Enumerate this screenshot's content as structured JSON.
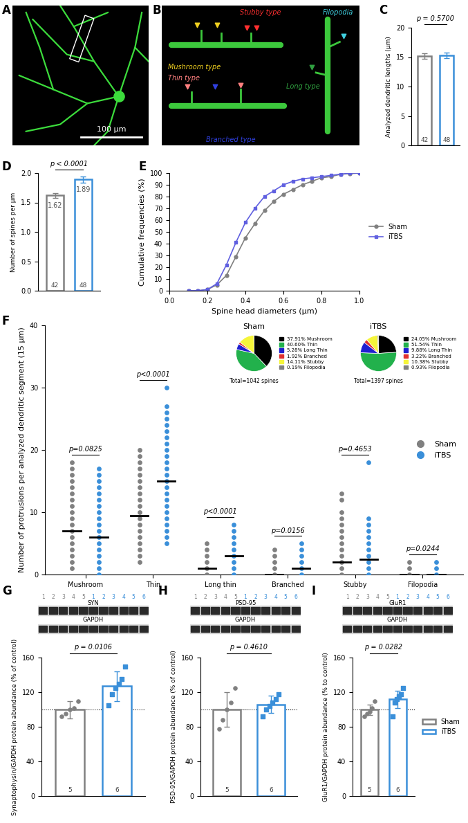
{
  "chart_data": [
    {
      "panel": "A",
      "type": "image",
      "scale_bar": "100 µm"
    },
    {
      "panel": "B",
      "type": "image",
      "labels": [
        {
          "text": "Stubby type",
          "color": "#ff3030"
        },
        {
          "text": "Filopodia",
          "color": "#40d0e0"
        },
        {
          "text": "Mushroom type",
          "color": "#f0d020"
        },
        {
          "text": "Thin type",
          "color": "#ff8080"
        },
        {
          "text": "Long type",
          "color": "#30a040"
        },
        {
          "text": "Branched type",
          "color": "#3040e0"
        }
      ]
    },
    {
      "panel": "C",
      "type": "bar",
      "categories": [
        null,
        null
      ],
      "values": [
        15.2,
        15.3
      ],
      "errors": [
        0.5,
        0.5
      ],
      "colors": [
        "#808080",
        "#3a8fd9"
      ],
      "n": [
        42,
        48
      ],
      "p_label": "p = 0.5700",
      "y_label": "Analyzed dendritic lengths (µm)",
      "ylim": [
        0,
        20
      ],
      "yticks": [
        0,
        5,
        10,
        15,
        20
      ],
      "tick_labels": "y"
    },
    {
      "panel": "D",
      "type": "bar",
      "categories": [
        null,
        null
      ],
      "values": [
        1.62,
        1.89
      ],
      "errors": [
        0.04,
        0.05
      ],
      "colors": [
        "#808080",
        "#3a8fd9"
      ],
      "n": [
        42,
        48
      ],
      "p_label": "p < 0.0001",
      "data_labels": true,
      "y_label": "Number of spines per µm",
      "ylim": [
        0.0,
        2.0
      ],
      "yticks": [
        0.0,
        0.5,
        1.0,
        1.5,
        2.0
      ],
      "tick_labels": "y"
    },
    {
      "panel": "E",
      "type": "line",
      "x_label": "Spine head diameters (µm)",
      "y_label": "Cumulative frequencies (%)",
      "x": [
        0.1,
        0.15,
        0.2,
        0.25,
        0.3,
        0.35,
        0.4,
        0.45,
        0.5,
        0.55,
        0.6,
        0.65,
        0.7,
        0.75,
        0.8,
        0.85,
        0.9,
        0.95,
        1.0
      ],
      "series": [
        {
          "name": "Sham",
          "color": "#808080",
          "marker": "circle",
          "values": [
            0,
            0,
            1,
            5,
            13,
            29,
            45,
            57,
            68,
            76,
            82,
            86,
            90,
            93,
            96,
            97,
            99,
            99.5,
            100
          ]
        },
        {
          "name": "iTBS",
          "color": "#6060e0",
          "marker": "square",
          "values": [
            0,
            0,
            1,
            6,
            22,
            41,
            58,
            70,
            80,
            85,
            90,
            93,
            95,
            96,
            97,
            98,
            99,
            100,
            100
          ]
        }
      ],
      "xlim": [
        0.0,
        1.0
      ],
      "xticks": [
        0.0,
        0.2,
        0.4,
        0.6,
        0.8,
        1.0
      ],
      "ylim": [
        0,
        100
      ],
      "yticks": [
        0,
        10,
        20,
        30,
        40,
        50,
        60,
        70,
        80,
        90,
        100
      ],
      "legend": "right"
    },
    {
      "panel": "F",
      "type": "strip",
      "categories": [
        "Mushroom",
        "Thin",
        "Long thin",
        "Branched",
        "Stubby",
        "Filopodia"
      ],
      "y_label": "Number of protrusions per analyzed dendritic segment (15 µm)",
      "ylim": [
        0,
        40
      ],
      "yticks": [
        0,
        10,
        20,
        30,
        40
      ],
      "legend": "right",
      "p_labels": [
        "p=0.0825",
        "p<0.0001",
        "p<0.0001",
        "p=0.0156",
        "p=0.4653",
        "p=0.0244"
      ],
      "series": [
        {
          "name": "Sham",
          "color": "#808080",
          "marker": "circle",
          "medians": [
            7,
            9.5,
            1,
            0,
            2,
            0
          ],
          "points": [
            [
              1,
              2,
              3,
              4,
              5,
              6,
              7,
              8,
              9,
              10,
              11,
              12,
              13,
              14,
              15,
              16,
              17,
              18
            ],
            [
              2,
              3,
              4,
              5,
              6,
              7,
              8,
              9,
              10,
              11,
              12,
              13,
              14,
              15,
              16,
              17,
              18,
              19,
              20
            ],
            [
              0,
              1,
              2,
              3,
              4,
              5
            ],
            [
              0,
              1,
              2,
              3,
              4
            ],
            [
              0,
              1,
              2,
              3,
              4,
              5,
              6,
              7,
              8,
              9,
              10,
              12,
              13
            ],
            [
              0,
              1,
              2
            ]
          ]
        },
        {
          "name": "iTBS",
          "color": "#3a8fd9",
          "marker": "circle",
          "medians": [
            6,
            15,
            3,
            1,
            2.5,
            0
          ],
          "points": [
            [
              0,
              1,
              2,
              3,
              4,
              5,
              6,
              7,
              8,
              9,
              10,
              11,
              12,
              13,
              14,
              15,
              16,
              17
            ],
            [
              5,
              6,
              7,
              8,
              9,
              10,
              11,
              12,
              13,
              14,
              15,
              16,
              17,
              18,
              19,
              20,
              21,
              22,
              23,
              24,
              25,
              26,
              27,
              30
            ],
            [
              0,
              1,
              2,
              3,
              4,
              5,
              6,
              7,
              8
            ],
            [
              0,
              1,
              2,
              3,
              4,
              5
            ],
            [
              0,
              1,
              2,
              3,
              4,
              5,
              6,
              7,
              8,
              9,
              18
            ],
            [
              0,
              1,
              2
            ]
          ]
        }
      ]
    },
    {
      "panel": "F",
      "type": "pie",
      "title": "Sham",
      "categories": [
        "37.91% Mushroom",
        "40.60% Thin",
        "5.28% Long Thin",
        "1.92% Branched",
        "14.11% Stubby",
        "0.19% Filopodia"
      ],
      "values": [
        37.91,
        40.6,
        5.28,
        1.92,
        14.11,
        0.19
      ],
      "colors": [
        "#000000",
        "#22b14c",
        "#1f1fd0",
        "#e03030",
        "#f5f53a",
        "#808080"
      ],
      "total": "Total=1042 spines",
      "legend": "right"
    },
    {
      "panel": "F",
      "type": "pie",
      "title": "iTBS",
      "categories": [
        "24.05% Mushroom",
        "51.54% Thin",
        "9.88% Long Thin",
        "3.22% Branched",
        "10.38% Stubby",
        "0.93% Filopodia"
      ],
      "values": [
        24.05,
        51.54,
        9.88,
        3.22,
        10.38,
        0.93
      ],
      "colors": [
        "#000000",
        "#22b14c",
        "#1f1fd0",
        "#e03030",
        "#f5f53a",
        "#808080"
      ],
      "total": "Total=1397 spines",
      "legend": "right"
    },
    {
      "panel": "G",
      "type": "bar",
      "categories": [
        null,
        null
      ],
      "blot": {
        "bands": [
          "SYN",
          "GAPDH"
        ],
        "lanes": [
          [
            1,
            2,
            3,
            4,
            5
          ],
          [
            1,
            2,
            3,
            4,
            5,
            6
          ]
        ]
      },
      "values": [
        100,
        127
      ],
      "errors": [
        10,
        17
      ],
      "points": [
        [
          92,
          95,
          100,
          102,
          110
        ],
        [
          105,
          118,
          125,
          130,
          135,
          150
        ]
      ],
      "colors": [
        "#808080",
        "#3a8fd9"
      ],
      "n": [
        5,
        6
      ],
      "reference_line": 100,
      "p_label": "p = 0.0106",
      "y_label": "Synaptophysin/GAPDH protein abundance (% of control)",
      "ylim": [
        0,
        160
      ],
      "yticks": [
        0,
        40,
        80,
        120,
        160
      ],
      "tick_labels": "y"
    },
    {
      "panel": "H",
      "type": "bar",
      "categories": [
        null,
        null
      ],
      "blot": {
        "bands": [
          "PSD-95",
          "GAPDH"
        ],
        "lanes": [
          [
            1,
            2,
            3,
            4,
            5
          ],
          [
            1,
            2,
            3,
            4,
            5,
            6
          ]
        ]
      },
      "values": [
        100,
        106
      ],
      "errors": [
        20,
        10
      ],
      "points": [
        [
          78,
          88,
          100,
          108,
          125
        ],
        [
          92,
          100,
          104,
          108,
          112,
          118
        ]
      ],
      "colors": [
        "#808080",
        "#3a8fd9"
      ],
      "n": [
        5,
        6
      ],
      "reference_line": 100,
      "p_label": "p = 0.4610",
      "y_label": "PSD-95/GAPDH protein abundance (% of control)",
      "ylim": [
        0,
        160
      ],
      "yticks": [
        0,
        40,
        80,
        120,
        160
      ],
      "tick_labels": "y"
    },
    {
      "panel": "I",
      "type": "bar",
      "categories": [
        null,
        null
      ],
      "blot": {
        "bands": [
          "GluR1",
          "GAPDH"
        ],
        "lanes": [
          [
            1,
            2,
            3,
            4,
            5
          ],
          [
            1,
            2,
            3,
            4,
            5,
            6
          ]
        ]
      },
      "values": [
        100,
        112
      ],
      "errors": [
        6,
        10
      ],
      "points": [
        [
          92,
          95,
          98,
          102,
          110
        ],
        [
          92,
          108,
          112,
          115,
          118,
          125
        ]
      ],
      "colors": [
        "#808080",
        "#3a8fd9"
      ],
      "n": [
        5,
        6
      ],
      "reference_line": 100,
      "p_label": "p = 0.0282",
      "y_label": "GluR1/GAPDH protein abundance (% to control)",
      "ylim": [
        0,
        160
      ],
      "yticks": [
        0,
        40,
        80,
        120,
        160
      ],
      "tick_labels": "y",
      "legend": "right",
      "legend_entries": [
        {
          "name": "Sham",
          "color": "#808080"
        },
        {
          "name": "iTBS",
          "color": "#3a8fd9"
        }
      ]
    }
  ]
}
